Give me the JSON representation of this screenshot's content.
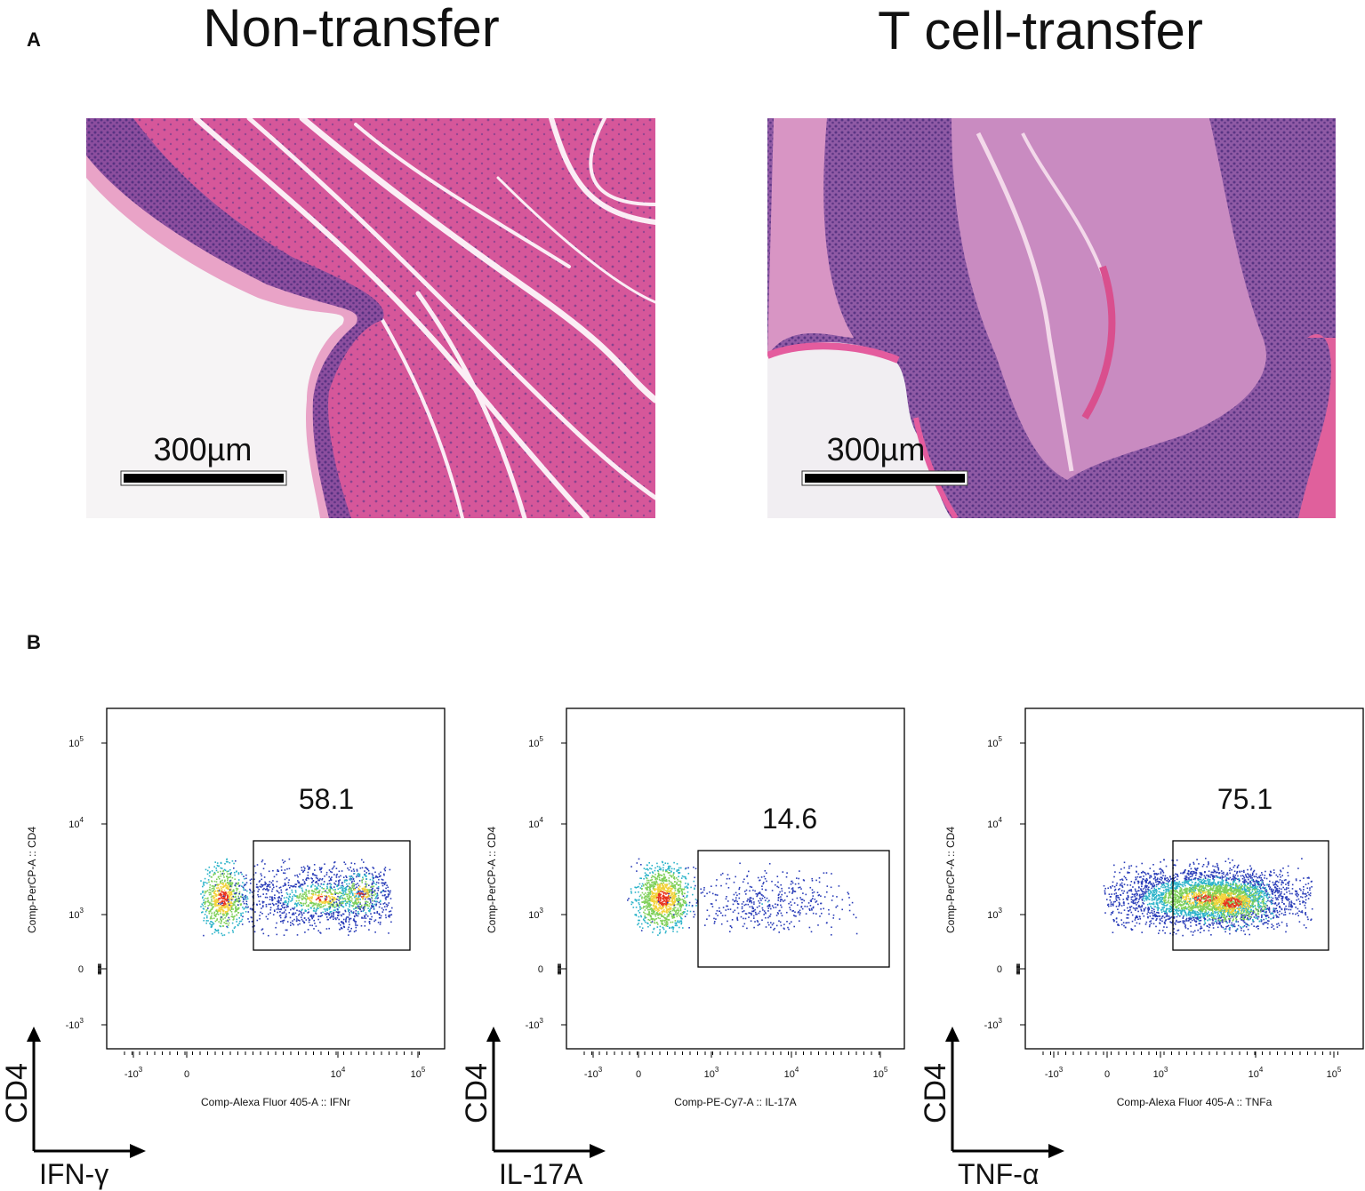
{
  "panel_a": {
    "label": "A",
    "images": [
      {
        "title": "Non-transfer",
        "scale_bar": "300µm"
      },
      {
        "title": "T cell-transfer",
        "scale_bar": "300µm"
      }
    ]
  },
  "panel_b": {
    "label": "B",
    "plots": [
      {
        "y_axis_title": "Comp-PerCP-A :: CD4",
        "x_axis_title": "Comp-Alexa Fluor 405-A :: IFNr",
        "gate_value": 58.1,
        "y_marker": "CD4",
        "x_marker": "IFN-γ",
        "yticks": [
          {
            "base": "10",
            "exp": "5"
          },
          {
            "base": "10",
            "exp": "4"
          },
          {
            "base": "10",
            "exp": "3"
          },
          {
            "base": "0"
          },
          {
            "base": "-10",
            "exp": "3"
          }
        ],
        "xticks": [
          {
            "base": "-10",
            "exp": "3"
          },
          {
            "base": "0"
          },
          {
            "base": "10",
            "exp": "4"
          },
          {
            "base": "10",
            "exp": "5"
          }
        ]
      },
      {
        "y_axis_title": "Comp-PerCP-A :: CD4",
        "x_axis_title": "Comp-PE-Cy7-A :: IL-17A",
        "gate_value": 14.6,
        "y_marker": "CD4",
        "x_marker": "IL-17A",
        "yticks": [
          {
            "base": "10",
            "exp": "5"
          },
          {
            "base": "10",
            "exp": "4"
          },
          {
            "base": "10",
            "exp": "3"
          },
          {
            "base": "0"
          },
          {
            "base": "-10",
            "exp": "3"
          }
        ],
        "xticks": [
          {
            "base": "-10",
            "exp": "3"
          },
          {
            "base": "0"
          },
          {
            "base": "10",
            "exp": "3"
          },
          {
            "base": "10",
            "exp": "4"
          },
          {
            "base": "10",
            "exp": "5"
          }
        ]
      },
      {
        "y_axis_title": "Comp-PerCP-A :: CD4",
        "x_axis_title": "Comp-Alexa Fluor 405-A :: TNFa",
        "gate_value": 75.1,
        "y_marker": "CD4",
        "x_marker": "TNF-α",
        "yticks": [
          {
            "base": "10",
            "exp": "5"
          },
          {
            "base": "10",
            "exp": "4"
          },
          {
            "base": "10",
            "exp": "3"
          },
          {
            "base": "0"
          },
          {
            "base": "-10",
            "exp": "3"
          }
        ],
        "xticks": [
          {
            "base": "-10",
            "exp": "3"
          },
          {
            "base": "0"
          },
          {
            "base": "10",
            "exp": "3"
          },
          {
            "base": "10",
            "exp": "4"
          },
          {
            "base": "10",
            "exp": "5"
          }
        ]
      }
    ]
  }
}
